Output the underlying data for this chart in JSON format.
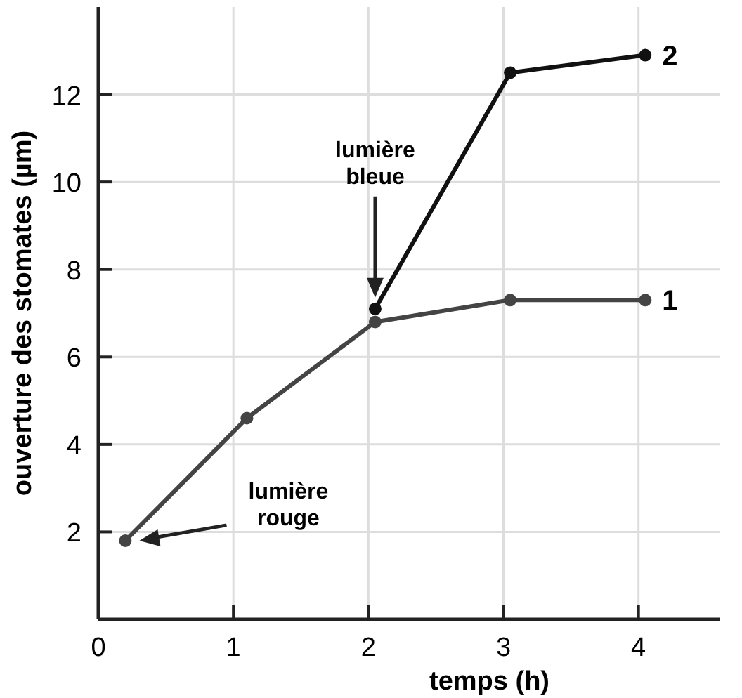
{
  "chart_data": {
    "type": "line",
    "xlabel": "temps (h)",
    "ylabel": "ouverture des stomates (µm)",
    "xlim": [
      0,
      4.6
    ],
    "xticks": [
      0,
      1,
      2,
      3,
      4
    ],
    "ylim": [
      0,
      14
    ],
    "yticks": [
      2,
      4,
      6,
      8,
      10,
      12
    ],
    "grid": true,
    "marker": "circle",
    "line_style": "solid",
    "series": [
      {
        "name": "1",
        "color": "#444444",
        "x": [
          0.2,
          1.1,
          2.05,
          3.05,
          4.05
        ],
        "values": [
          1.8,
          4.6,
          6.8,
          7.3,
          7.3
        ]
      },
      {
        "name": "2",
        "color": "#111111",
        "x": [
          2.05,
          3.05,
          4.05
        ],
        "values": [
          7.1,
          12.5,
          12.9
        ]
      }
    ],
    "annotations": [
      "lumière rouge",
      "lumière bleue"
    ]
  }
}
